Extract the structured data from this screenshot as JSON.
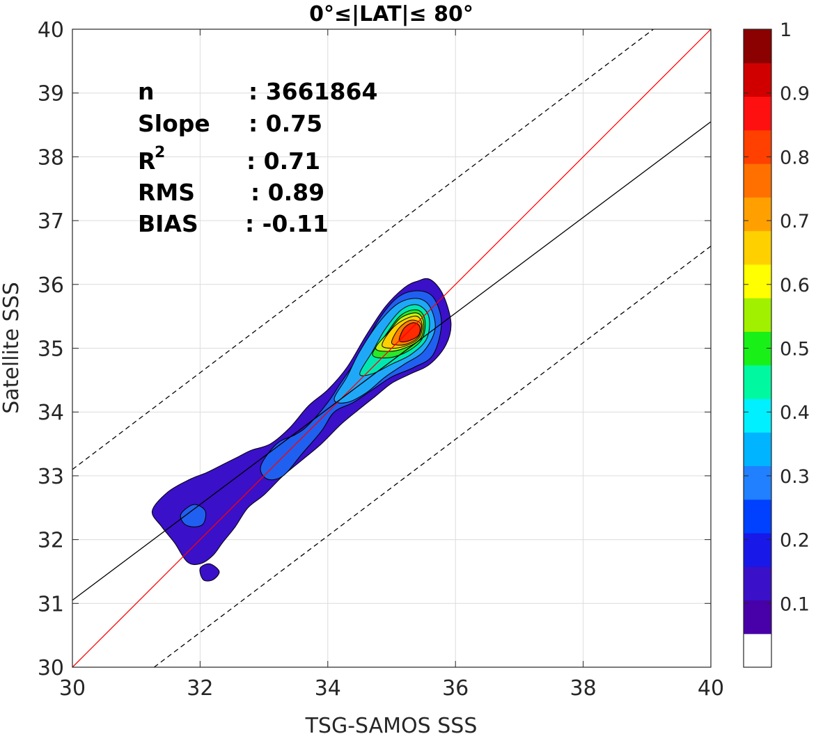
{
  "chart_data": {
    "type": "density-contour",
    "title": "0°≤|LAT|≤ 80°",
    "xlabel": "TSG-SAMOS SSS",
    "ylabel": "Satellite SSS",
    "xlim": [
      30,
      40
    ],
    "ylim": [
      30,
      40
    ],
    "xticks": [
      "30",
      "32",
      "34",
      "36",
      "38",
      "40"
    ],
    "yticks": [
      "30",
      "31",
      "32",
      "33",
      "34",
      "35",
      "36",
      "37",
      "38",
      "39",
      "40"
    ],
    "grid": true,
    "stats": {
      "n_label": "n",
      "n_value": ": 3661864",
      "slope_label": "Slope",
      "slope_value": ": 0.75",
      "r2_label": "R",
      "r2_sup": "2",
      "r2_value": ": 0.71",
      "rms_label": "RMS",
      "rms_value": ": 0.89",
      "bias_label": "BIAS",
      "bias_value": ": -0.11"
    },
    "reference_lines": [
      {
        "kind": "one-to-one",
        "color": "#ff0000",
        "points": [
          [
            30,
            30
          ],
          [
            40,
            40
          ]
        ]
      },
      {
        "kind": "regression",
        "color": "#000000",
        "points": [
          [
            30,
            31.05
          ],
          [
            40,
            38.55
          ]
        ]
      },
      {
        "kind": "upper-bound",
        "color": "#000000",
        "dashed": true,
        "points": [
          [
            30,
            33.1
          ],
          [
            39.1,
            40
          ]
        ]
      },
      {
        "kind": "lower-bound",
        "color": "#000000",
        "dashed": true,
        "points": [
          [
            31.28,
            30
          ],
          [
            40,
            36.6
          ]
        ]
      }
    ],
    "contours": [
      {
        "level": 0.05,
        "color": "#3a10c8",
        "points": [
          [
            31.25,
            32.45
          ],
          [
            31.5,
            32.75
          ],
          [
            31.85,
            32.95
          ],
          [
            32.1,
            33.05
          ],
          [
            32.4,
            33.2
          ],
          [
            32.6,
            33.3
          ],
          [
            32.8,
            33.4
          ],
          [
            33.1,
            33.5
          ],
          [
            33.4,
            33.75
          ],
          [
            33.7,
            34.1
          ],
          [
            34,
            34.35
          ],
          [
            34.3,
            34.7
          ],
          [
            34.6,
            35.2
          ],
          [
            34.9,
            35.65
          ],
          [
            35.2,
            35.95
          ],
          [
            35.4,
            36.05
          ],
          [
            35.6,
            36.08
          ],
          [
            35.8,
            35.85
          ],
          [
            35.93,
            35.4
          ],
          [
            35.85,
            35.05
          ],
          [
            35.6,
            34.75
          ],
          [
            35.3,
            34.6
          ],
          [
            35,
            34.45
          ],
          [
            34.75,
            34.25
          ],
          [
            34.5,
            34.05
          ],
          [
            34.2,
            33.8
          ],
          [
            33.9,
            33.5
          ],
          [
            33.6,
            33.25
          ],
          [
            33.3,
            33.0
          ],
          [
            33.0,
            32.7
          ],
          [
            32.75,
            32.5
          ],
          [
            32.55,
            32.2
          ],
          [
            32.35,
            31.95
          ],
          [
            32.2,
            31.75
          ],
          [
            32.0,
            31.62
          ],
          [
            31.8,
            31.65
          ],
          [
            31.6,
            31.95
          ],
          [
            31.4,
            32.2
          ]
        ]
      },
      {
        "level": 0.05,
        "color": "#3a10c8",
        "points": [
          [
            32,
            31.55
          ],
          [
            32.15,
            31.62
          ],
          [
            32.3,
            31.5
          ],
          [
            32.2,
            31.37
          ],
          [
            32.05,
            31.37
          ]
        ]
      },
      {
        "level": 0.15,
        "color": "#2060f0",
        "points": [
          [
            31.7,
            32.4
          ],
          [
            31.9,
            32.55
          ],
          [
            32.08,
            32.45
          ],
          [
            32.05,
            32.25
          ],
          [
            31.9,
            32.2
          ],
          [
            31.75,
            32.25
          ]
        ]
      },
      {
        "level": 0.15,
        "color": "#2060f0",
        "points": [
          [
            32.95,
            33.15
          ],
          [
            33.2,
            33.5
          ],
          [
            33.5,
            33.65
          ],
          [
            33.7,
            33.8
          ],
          [
            34.0,
            34.15
          ],
          [
            34.2,
            34.45
          ],
          [
            34.5,
            34.9
          ],
          [
            34.8,
            35.45
          ],
          [
            35.1,
            35.8
          ],
          [
            35.4,
            35.9
          ],
          [
            35.65,
            35.8
          ],
          [
            35.78,
            35.4
          ],
          [
            35.65,
            34.9
          ],
          [
            35.35,
            34.7
          ],
          [
            35.0,
            34.55
          ],
          [
            34.7,
            34.35
          ],
          [
            34.4,
            34.15
          ],
          [
            34.1,
            34.0
          ],
          [
            33.9,
            33.7
          ],
          [
            33.6,
            33.35
          ],
          [
            33.3,
            33.0
          ],
          [
            33.05,
            32.95
          ]
        ]
      },
      {
        "level": 0.25,
        "color": "#20a8f8",
        "points": [
          [
            34.1,
            34.2
          ],
          [
            34.3,
            34.55
          ],
          [
            34.5,
            34.95
          ],
          [
            34.8,
            35.4
          ],
          [
            35.1,
            35.7
          ],
          [
            35.4,
            35.78
          ],
          [
            35.6,
            35.65
          ],
          [
            35.68,
            35.3
          ],
          [
            35.5,
            34.95
          ],
          [
            35.2,
            34.75
          ],
          [
            34.9,
            34.55
          ],
          [
            34.6,
            34.3
          ],
          [
            34.3,
            34.15
          ]
        ]
      },
      {
        "level": 0.35,
        "color": "#00e8b0",
        "points": [
          [
            34.5,
            34.6
          ],
          [
            34.7,
            34.95
          ],
          [
            34.9,
            35.3
          ],
          [
            35.15,
            35.6
          ],
          [
            35.4,
            35.68
          ],
          [
            35.58,
            35.5
          ],
          [
            35.55,
            35.15
          ],
          [
            35.3,
            34.9
          ],
          [
            35.0,
            34.75
          ],
          [
            34.7,
            34.6
          ]
        ]
      },
      {
        "level": 0.45,
        "color": "#28e828",
        "points": [
          [
            34.7,
            34.9
          ],
          [
            34.9,
            35.2
          ],
          [
            35.15,
            35.52
          ],
          [
            35.4,
            35.6
          ],
          [
            35.52,
            35.45
          ],
          [
            35.48,
            35.15
          ],
          [
            35.25,
            34.95
          ],
          [
            34.95,
            34.85
          ]
        ]
      },
      {
        "level": 0.55,
        "color": "#c8f010",
        "points": [
          [
            34.75,
            35.0
          ],
          [
            34.95,
            35.25
          ],
          [
            35.15,
            35.48
          ],
          [
            35.4,
            35.55
          ],
          [
            35.5,
            35.4
          ],
          [
            35.45,
            35.15
          ],
          [
            35.2,
            35.0
          ],
          [
            34.95,
            34.95
          ]
        ]
      },
      {
        "level": 0.65,
        "color": "#ffd000",
        "points": [
          [
            34.85,
            35.05
          ],
          [
            35.0,
            35.3
          ],
          [
            35.2,
            35.45
          ],
          [
            35.4,
            35.5
          ],
          [
            35.48,
            35.35
          ],
          [
            35.42,
            35.15
          ],
          [
            35.2,
            35.03
          ],
          [
            35.0,
            35.0
          ]
        ]
      },
      {
        "level": 0.75,
        "color": "#ff8000",
        "points": [
          [
            35.0,
            35.1
          ],
          [
            35.12,
            35.32
          ],
          [
            35.3,
            35.44
          ],
          [
            35.46,
            35.38
          ],
          [
            35.42,
            35.18
          ],
          [
            35.25,
            35.07
          ],
          [
            35.08,
            35.05
          ]
        ]
      },
      {
        "level": 0.85,
        "color": "#ff2a00",
        "points": [
          [
            35.12,
            35.15
          ],
          [
            35.2,
            35.32
          ],
          [
            35.34,
            35.4
          ],
          [
            35.44,
            35.34
          ],
          [
            35.42,
            35.2
          ],
          [
            35.28,
            35.12
          ],
          [
            35.15,
            35.1
          ]
        ]
      }
    ],
    "colorbar": {
      "range": [
        0,
        1
      ],
      "ticks": [
        "0.1",
        "0.2",
        "0.3",
        "0.4",
        "0.5",
        "0.6",
        "0.7",
        "0.8",
        "0.9",
        "1"
      ],
      "colors": [
        "#ffffff",
        "#4800a8",
        "#3a10c8",
        "#1818e8",
        "#0040ff",
        "#2080ff",
        "#00b4ff",
        "#00f0ff",
        "#00f8a0",
        "#18f018",
        "#a0f000",
        "#ffff00",
        "#ffd000",
        "#ffa000",
        "#ff7000",
        "#ff4000",
        "#ff1010",
        "#d00000",
        "#8b0000"
      ]
    }
  }
}
